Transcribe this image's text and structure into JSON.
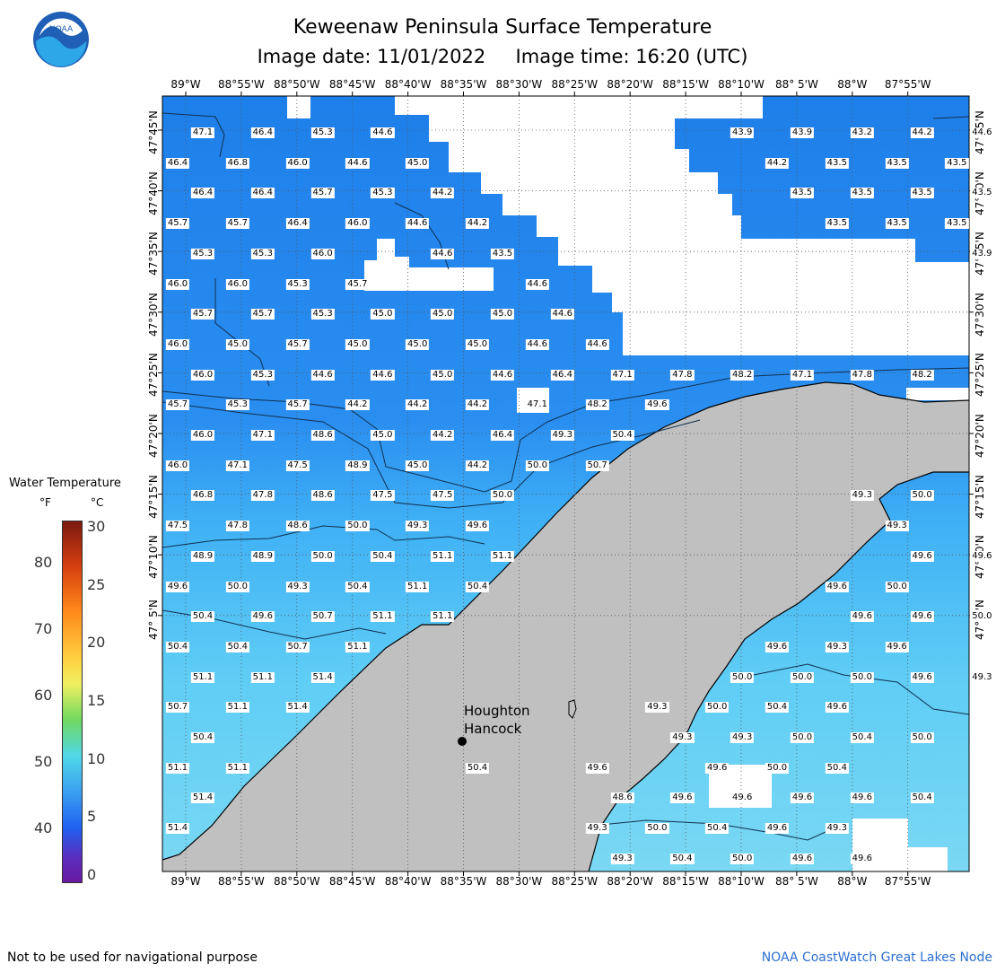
{
  "header": {
    "title": "Keweenaw Peninsula Surface Temperature",
    "subtitle": "Image date: 11/01/2022     Image time: 16:20 (UTC)",
    "logo_text": "NOAA"
  },
  "map": {
    "lon_labels": [
      "89°W",
      "88°55'W",
      "88°50'W",
      "88°45'W",
      "88°40'W",
      "88°35'W",
      "88°30'W",
      "88°25'W",
      "88°20'W",
      "88°15'W",
      "88°10'W",
      "88° 5'W",
      "88°W",
      "87°55'W"
    ],
    "lat_labels": [
      "47°45'N",
      "47°40'N",
      "47°35'N",
      "47°30'N",
      "47°25'N",
      "47°20'N",
      "47°15'N",
      "47°10'N",
      "47° 5'N"
    ],
    "city_label_1": "Houghton",
    "city_label_2": "Hancock",
    "temperatures": [
      [
        "47.1",
        "46.4",
        "45.3",
        "44.6",
        "",
        "",
        "",
        "",
        "",
        "43.9",
        "43.9",
        "43.2",
        "44.2",
        "44.6"
      ],
      [
        "46.4",
        "46.8",
        "46.0",
        "44.6",
        "45.0",
        "",
        "",
        "",
        "",
        "",
        "44.2",
        "43.5",
        "43.5",
        "43.5"
      ],
      [
        "46.4",
        "46.4",
        "45.7",
        "45.3",
        "44.2",
        "",
        "",
        "",
        "",
        "",
        "43.5",
        "43.5",
        "43.5",
        "43.5"
      ],
      [
        "45.7",
        "45.7",
        "46.4",
        "46.0",
        "44.6",
        "44.2",
        "",
        "",
        "",
        "",
        "",
        "43.5",
        "43.5",
        "43.5"
      ],
      [
        "45.3",
        "45.3",
        "46.0",
        "",
        "44.6",
        "43.5",
        "",
        "",
        "",
        "",
        "",
        "",
        "",
        "43.9"
      ],
      [
        "46.0",
        "46.0",
        "45.3",
        "45.7",
        "",
        "",
        "44.6",
        "",
        "",
        "",
        "",
        "",
        "",
        ""
      ],
      [
        "45.7",
        "45.7",
        "45.3",
        "45.0",
        "45.0",
        "45.0",
        "44.6",
        "",
        "",
        "",
        "",
        "",
        "",
        ""
      ],
      [
        "46.0",
        "45.0",
        "45.7",
        "45.0",
        "45.0",
        "45.0",
        "44.6",
        "44.6",
        "",
        "",
        "",
        "",
        "",
        ""
      ],
      [
        "46.0",
        "45.3",
        "44.6",
        "44.6",
        "45.0",
        "44.6",
        "46.4",
        "47.1",
        "47.8",
        "48.2",
        "47.1",
        "47.8",
        "48.2",
        ""
      ],
      [
        "45.7",
        "45.3",
        "45.7",
        "44.2",
        "44.2",
        "44.2",
        "47.1",
        "48.2",
        "49.6",
        "",
        "",
        "",
        "",
        ""
      ],
      [
        "46.0",
        "47.1",
        "48.6",
        "45.0",
        "44.2",
        "46.4",
        "49.3",
        "50.4",
        "",
        "",
        "",
        "",
        "",
        ""
      ],
      [
        "46.0",
        "47.1",
        "47.5",
        "48.9",
        "45.0",
        "44.2",
        "50.0",
        "50.7",
        "",
        "",
        "",
        "",
        "",
        ""
      ],
      [
        "46.8",
        "47.8",
        "48.6",
        "47.5",
        "47.5",
        "50.0",
        "",
        "",
        "",
        "",
        "",
        "49.3",
        "50.0",
        ""
      ],
      [
        "47.5",
        "47.8",
        "48.6",
        "50.0",
        "49.3",
        "49.6",
        "",
        "",
        "",
        "",
        "",
        "",
        "49.3",
        ""
      ],
      [
        "48.9",
        "48.9",
        "50.0",
        "50.4",
        "51.1",
        "51.1",
        "",
        "",
        "",
        "",
        "",
        "",
        "49.6",
        "49.6"
      ],
      [
        "49.6",
        "50.0",
        "49.3",
        "50.4",
        "51.1",
        "50.4",
        "",
        "",
        "",
        "",
        "",
        "49.6",
        "50.0",
        ""
      ],
      [
        "50.4",
        "49.6",
        "50.7",
        "51.1",
        "51.1",
        "",
        "",
        "",
        "",
        "",
        "",
        "49.6",
        "49.6",
        "50.0"
      ],
      [
        "50.4",
        "50.4",
        "50.7",
        "51.1",
        "",
        "",
        "",
        "",
        "",
        "",
        "49.6",
        "49.3",
        "49.6",
        ""
      ],
      [
        "51.1",
        "51.1",
        "51.4",
        "",
        "",
        "",
        "",
        "",
        "",
        "50.0",
        "50.0",
        "50.0",
        "49.6",
        "49.3"
      ],
      [
        "50.7",
        "51.1",
        "51.4",
        "",
        "",
        "",
        "",
        "",
        "49.3",
        "50.0",
        "50.4",
        "49.6",
        "",
        ""
      ],
      [
        "50.4",
        "",
        "",
        "",
        "",
        "",
        "",
        "",
        "49.3",
        "49.3",
        "50.0",
        "50.4",
        "50.0",
        ""
      ],
      [
        "51.1",
        "51.1",
        "",
        "",
        "",
        "50.4",
        "",
        "49.6",
        "",
        "49.6",
        "50.0",
        "50.4",
        "",
        ""
      ],
      [
        "51.4",
        "",
        "",
        "",
        "",
        "",
        "",
        "48.6",
        "49.6",
        "49.6",
        "49.6",
        "49.6",
        "50.4",
        ""
      ],
      [
        "51.4",
        "",
        "",
        "",
        "",
        "",
        "",
        "49.3",
        "50.0",
        "50.4",
        "49.6",
        "49.3",
        "",
        ""
      ],
      [
        "",
        "",
        "",
        "",
        "",
        "",
        "",
        "49.3",
        "50.4",
        "50.0",
        "49.6",
        "49.6",
        "",
        ""
      ]
    ]
  },
  "legend": {
    "title": "Water Temperature",
    "unit_f": "°F",
    "unit_c": "°C",
    "f_ticks": [
      "80",
      "70",
      "60",
      "50",
      "40"
    ],
    "c_ticks": [
      "30",
      "25",
      "20",
      "15",
      "10",
      "5",
      "0"
    ]
  },
  "footer": {
    "disclaimer": "Not to be used for navigational purpose",
    "source": "NOAA CoastWatch Great Lakes Node"
  },
  "colors": {
    "land": "#c0c0c0",
    "deep_water": "#1e7fea",
    "mid_water": "#3fb0f5",
    "shallow_water": "#6fd6f5",
    "source_text": "#2e6fd0"
  }
}
